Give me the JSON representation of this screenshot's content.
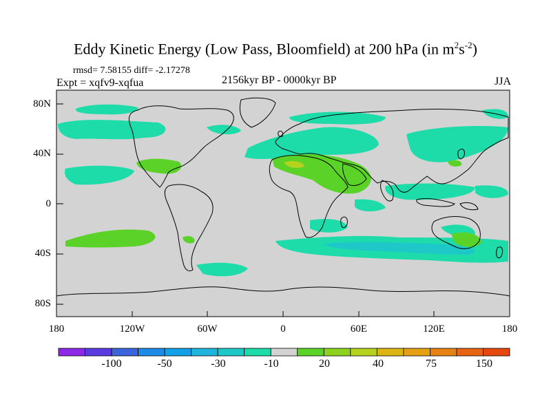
{
  "title_main": "Eddy Kinetic Energy (Low Pass, Bloomfield) at 200 hPa (in m",
  "title_sup1": "2",
  "title_s": "s",
  "title_sup2": "-2",
  "title_end": ")",
  "stats": "rmsd= 7.58155 diff= -2.17278",
  "expt": "Expt = xqfv9-xqfua",
  "period": "2156kyr BP - 0000kyr BP",
  "season": "JJA",
  "map": {
    "lon_range": [
      -180,
      180
    ],
    "lat_range": [
      -90,
      90
    ],
    "background_color": "#d3d3d3",
    "lat_ticks": [
      "80N",
      "40N",
      "0",
      "40S",
      "80S"
    ],
    "lon_ticks": [
      "180",
      "120W",
      "60W",
      "0",
      "60E",
      "120E",
      "180"
    ],
    "anomaly_regions": [
      {
        "region": "North Pacific",
        "sign": "negative",
        "level": "-10"
      },
      {
        "region": "North Atlantic / Europe",
        "sign": "negative",
        "level": "-10"
      },
      {
        "region": "Central Asia",
        "sign": "negative",
        "level": "-10"
      },
      {
        "region": "North Africa / Arabia",
        "sign": "positive",
        "level": "20"
      },
      {
        "region": "Gulf of Mexico",
        "sign": "positive",
        "level": "20"
      },
      {
        "region": "South Pacific",
        "sign": "positive",
        "level": "20"
      },
      {
        "region": "Southern Indian Ocean",
        "sign": "negative",
        "level": "-10"
      },
      {
        "region": "Australia",
        "sign": "positive",
        "level": "20"
      }
    ]
  },
  "colorbar": {
    "colors": [
      "#8c28e6",
      "#5a3ce0",
      "#3c64dc",
      "#1e8ce6",
      "#14a0e6",
      "#1eb4dc",
      "#1ec8c8",
      "#1edcaa",
      "#d3d3d3",
      "#5ad228",
      "#8cd21e",
      "#b4d21e",
      "#dcb414",
      "#e6a014",
      "#e68214",
      "#e66414",
      "#e6460f"
    ],
    "labels": [
      "-100",
      "-50",
      "-30",
      "-10",
      "20",
      "40",
      "75",
      "150"
    ]
  }
}
